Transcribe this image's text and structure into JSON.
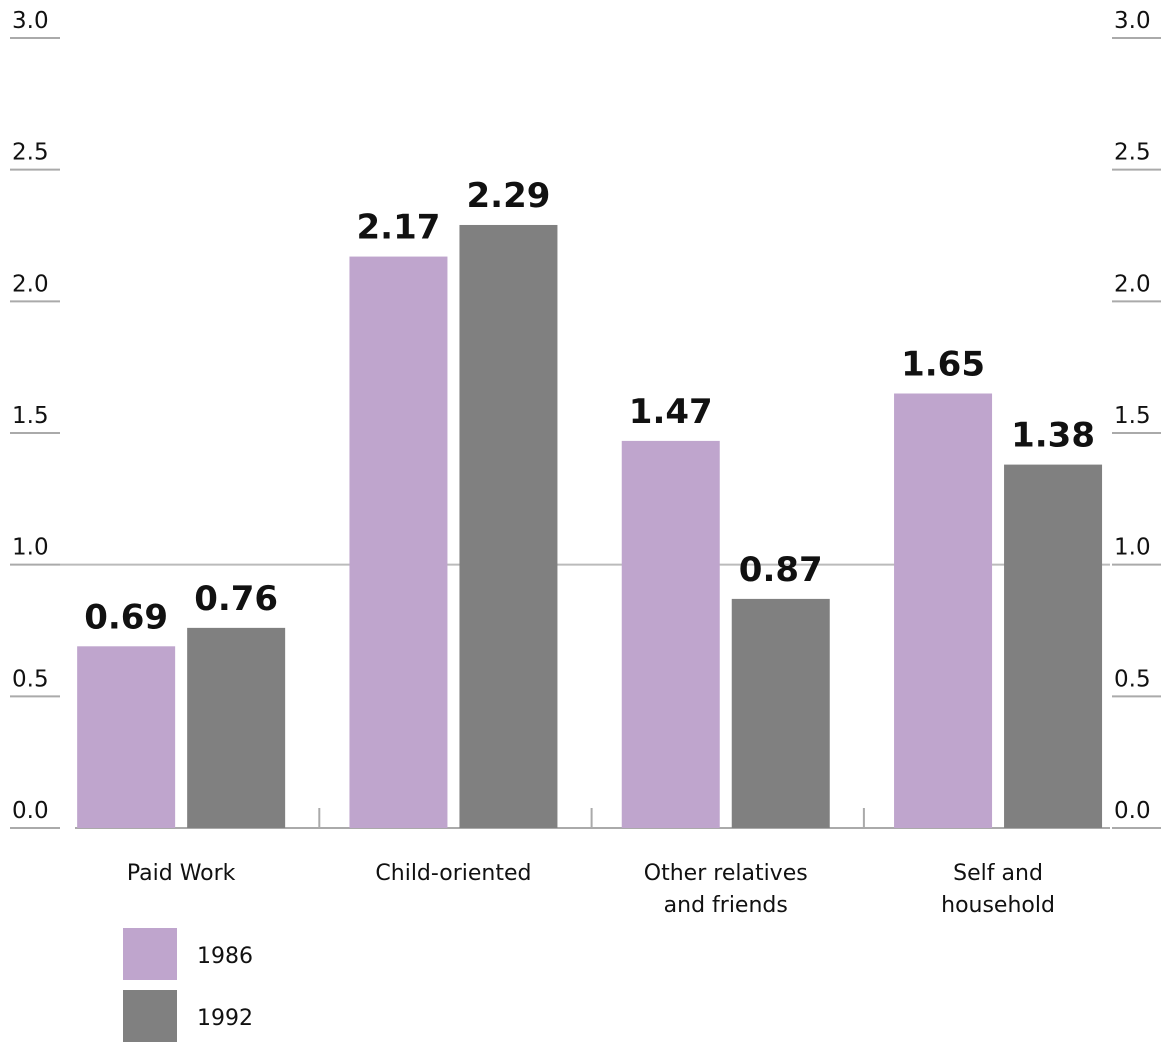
{
  "chart_data": {
    "type": "bar",
    "categories": [
      "Paid Work",
      "Child-oriented",
      "Other relatives and friends",
      "Self and household"
    ],
    "series": [
      {
        "name": "1986",
        "color": "#bfa5cd",
        "values": [
          0.69,
          2.17,
          1.47,
          1.65
        ]
      },
      {
        "name": "1992",
        "color": "#808080",
        "values": [
          0.76,
          2.29,
          0.87,
          1.38
        ]
      }
    ],
    "ylim": [
      0,
      3
    ],
    "yticks": [
      {
        "value": 0,
        "label": "0.0"
      },
      0.5,
      {
        "value": 1,
        "label": "1.0"
      },
      1.5,
      {
        "value": 2,
        "label": "2.0"
      },
      2.5,
      {
        "value": 3,
        "label": "3.0"
      }
    ],
    "reference_line": 1,
    "legend": "bottom-left"
  }
}
